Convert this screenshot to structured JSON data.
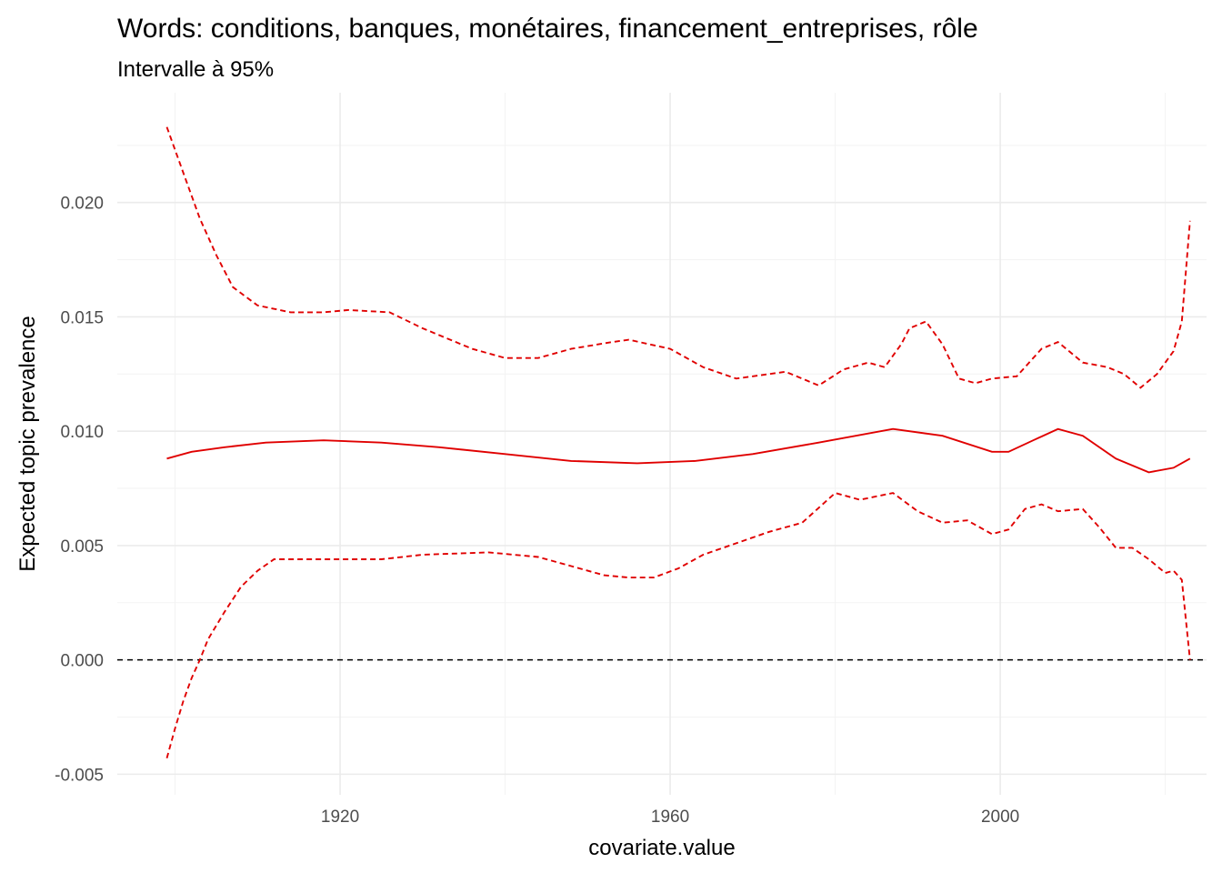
{
  "chart_data": {
    "type": "line",
    "title": "Words: conditions, banques, monétaires, financement_entreprises, rôle",
    "subtitle": "Intervalle à 95%",
    "xlabel": "covariate.value",
    "ylabel": "Expected topic prevalence",
    "xlim": [
      1893,
      2025
    ],
    "ylim": [
      -0.0059,
      0.0248
    ],
    "x_ticks": [
      1920,
      1960,
      2000
    ],
    "x_tick_labels": [
      "1920",
      "1960",
      "2000"
    ],
    "y_ticks": [
      -0.005,
      0.0,
      0.005,
      0.01,
      0.015,
      0.02
    ],
    "y_tick_labels": [
      "-0.005",
      "0.000",
      "0.005",
      "0.010",
      "0.015",
      "0.020"
    ],
    "grid": true,
    "reference_line": {
      "y": 0.0,
      "color": "#000000",
      "style": "dashed"
    },
    "series": [
      {
        "role": "estimate",
        "color": "#e00000",
        "style": "solid",
        "x": [
          1899,
          1902,
          1906,
          1911,
          1918,
          1925,
          1932,
          1940,
          1948,
          1956,
          1963,
          1970,
          1978,
          1987,
          1993,
          1999,
          2001,
          2004,
          2007,
          2010,
          2014,
          2018,
          2021,
          2023
        ],
        "y": [
          0.0088,
          0.0091,
          0.0093,
          0.0095,
          0.0096,
          0.0095,
          0.0093,
          0.009,
          0.0087,
          0.0086,
          0.0087,
          0.009,
          0.0095,
          0.0101,
          0.0098,
          0.0091,
          0.0091,
          0.0096,
          0.0101,
          0.0098,
          0.0088,
          0.0082,
          0.0084,
          0.0088
        ]
      },
      {
        "role": "upper 95%",
        "color": "#e00000",
        "style": "dashed",
        "x": [
          1899,
          1901,
          1903,
          1905,
          1907,
          1910,
          1914,
          1918,
          1921,
          1926,
          1930,
          1936,
          1940,
          1944,
          1948,
          1953,
          1955,
          1960,
          1964,
          1968,
          1974,
          1978,
          1981,
          1984,
          1986,
          1988,
          1989,
          1991,
          1993,
          1995,
          1997,
          1999,
          2002,
          2005,
          2007,
          2010,
          2013,
          2015,
          2017,
          2019,
          2021,
          2022,
          2023
        ],
        "y": [
          0.0233,
          0.0213,
          0.0193,
          0.0177,
          0.0163,
          0.0155,
          0.0152,
          0.0152,
          0.0153,
          0.0152,
          0.0145,
          0.0136,
          0.0132,
          0.0132,
          0.0136,
          0.0139,
          0.014,
          0.0136,
          0.0128,
          0.0123,
          0.0126,
          0.012,
          0.0127,
          0.013,
          0.0128,
          0.0138,
          0.0145,
          0.0148,
          0.0138,
          0.0123,
          0.0121,
          0.0123,
          0.0124,
          0.0136,
          0.0139,
          0.013,
          0.0128,
          0.0125,
          0.0119,
          0.0125,
          0.0135,
          0.0148,
          0.0192
        ]
      },
      {
        "role": "lower 95%",
        "color": "#e00000",
        "style": "dashed",
        "x": [
          1899,
          1900,
          1901,
          1902,
          1903,
          1904,
          1906,
          1908,
          1910,
          1912,
          1918,
          1925,
          1930,
          1938,
          1944,
          1948,
          1952,
          1955,
          1958,
          1961,
          1964,
          1968,
          1972,
          1976,
          1980,
          1983,
          1987,
          1990,
          1993,
          1996,
          1999,
          2001,
          2003,
          2005,
          2007,
          2010,
          2012,
          2014,
          2016,
          2018,
          2020,
          2021,
          2022,
          2023
        ],
        "y": [
          -0.0043,
          -0.003,
          -0.0018,
          -0.0008,
          0.0,
          0.0009,
          0.0021,
          0.0032,
          0.0039,
          0.0044,
          0.0044,
          0.0044,
          0.0046,
          0.0047,
          0.0045,
          0.0041,
          0.0037,
          0.0036,
          0.0036,
          0.004,
          0.0046,
          0.0051,
          0.0056,
          0.006,
          0.0073,
          0.007,
          0.0073,
          0.0065,
          0.006,
          0.0061,
          0.0055,
          0.0057,
          0.0066,
          0.0068,
          0.0065,
          0.0066,
          0.0058,
          0.0049,
          0.0049,
          0.0044,
          0.0038,
          0.0039,
          0.0035,
          0.0
        ]
      }
    ]
  }
}
